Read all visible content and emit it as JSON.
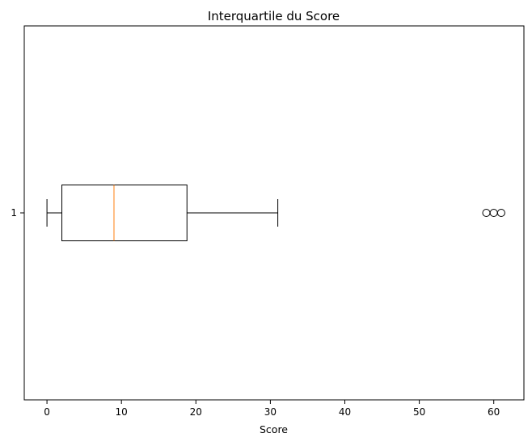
{
  "chart_data": {
    "type": "boxplot",
    "title": "Interquartile du Score",
    "xlabel": "Score",
    "ylabel": "",
    "orientation": "horizontal",
    "xlim": [
      -3.05,
      64.05
    ],
    "xticks": [
      0,
      10,
      20,
      30,
      40,
      50,
      60
    ],
    "yticks": [
      "1"
    ],
    "grid": false,
    "boxes": [
      {
        "category": "1",
        "whisker_low": 0,
        "q1": 2,
        "median": 9,
        "q3": 18.8,
        "whisker_high": 31,
        "outliers": [
          59,
          60,
          61
        ]
      }
    ],
    "colors": {
      "box": "#000000",
      "median": "#ff7f0e",
      "outlier_edge": "#000000"
    }
  }
}
